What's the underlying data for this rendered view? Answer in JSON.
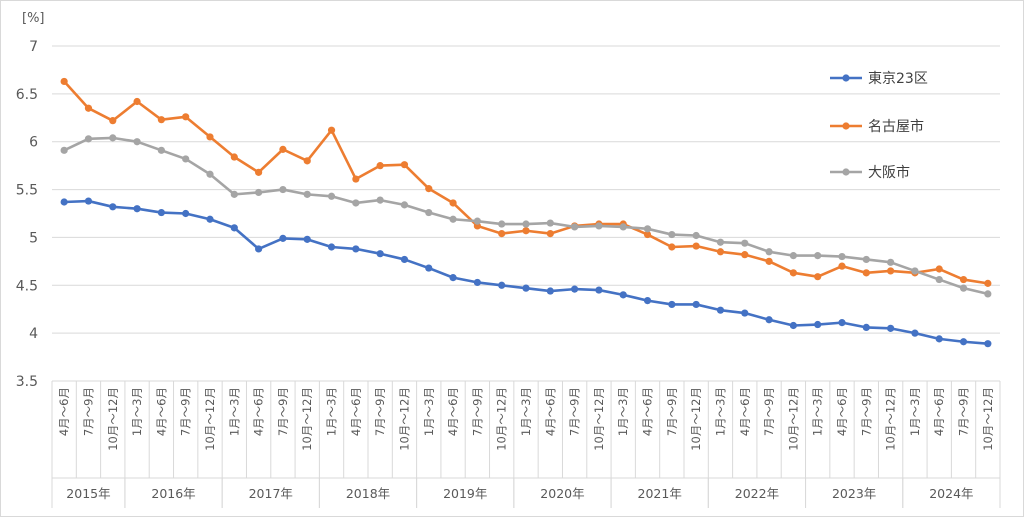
{
  "chart_data": {
    "type": "line",
    "title": "",
    "ylabel": "[%]",
    "ylim": [
      3.5,
      7
    ],
    "yticks": [
      3.5,
      4,
      4.5,
      5,
      5.5,
      6,
      6.5,
      7
    ],
    "grid": true,
    "legend_position": "right",
    "categories": [
      "4月～6月",
      "7月～9月",
      "10月～12月",
      "1月～3月",
      "4月～6月",
      "7月～9月",
      "10月～12月",
      "1月～3月",
      "4月～6月",
      "7月～9月",
      "10月～12月",
      "1月～3月",
      "4月～6月",
      "7月～9月",
      "10月～12月",
      "1月～3月",
      "4月～6月",
      "7月～9月",
      "10月～12月",
      "1月～3月",
      "4月～6月",
      "7月～9月",
      "10月～12月",
      "1月～3月",
      "4月～6月",
      "7月～9月",
      "10月～12月",
      "1月～3月",
      "4月～6月",
      "7月～9月",
      "10月～12月",
      "1月～3月",
      "4月～6月",
      "7月～9月",
      "10月～12月",
      "1月～3月",
      "4月～6月",
      "7月～9月",
      "10月～12月"
    ],
    "years": [
      {
        "label": "2015年",
        "start": 0,
        "count": 3
      },
      {
        "label": "2016年",
        "start": 3,
        "count": 4
      },
      {
        "label": "2017年",
        "start": 7,
        "count": 4
      },
      {
        "label": "2018年",
        "start": 11,
        "count": 4
      },
      {
        "label": "2019年",
        "start": 15,
        "count": 4
      },
      {
        "label": "2020年",
        "start": 19,
        "count": 4
      },
      {
        "label": "2021年",
        "start": 23,
        "count": 4
      },
      {
        "label": "2022年",
        "start": 27,
        "count": 4
      },
      {
        "label": "2023年",
        "start": 31,
        "count": 4
      },
      {
        "label": "2024年",
        "start": 35,
        "count": 4
      }
    ],
    "series": [
      {
        "name": "東京23区",
        "color": "#4472c4",
        "values": [
          5.37,
          5.38,
          5.32,
          5.3,
          5.26,
          5.25,
          5.19,
          5.1,
          4.88,
          4.99,
          4.98,
          4.9,
          4.88,
          4.83,
          4.77,
          4.68,
          4.58,
          4.53,
          4.5,
          4.47,
          4.44,
          4.46,
          4.45,
          4.4,
          4.34,
          4.3,
          4.3,
          4.24,
          4.21,
          4.14,
          4.08,
          4.09,
          4.11,
          4.06,
          4.05,
          4.0,
          3.94,
          3.91,
          3.89
        ]
      },
      {
        "name": "名古屋市",
        "color": "#ed7d31",
        "values": [
          6.63,
          6.35,
          6.22,
          6.42,
          6.23,
          6.26,
          6.05,
          5.84,
          5.68,
          5.92,
          5.8,
          6.12,
          5.61,
          5.75,
          5.76,
          5.51,
          5.36,
          5.12,
          5.04,
          5.07,
          5.04,
          5.12,
          5.14,
          5.14,
          5.03,
          4.9,
          4.91,
          4.85,
          4.82,
          4.75,
          4.63,
          4.59,
          4.7,
          4.63,
          4.65,
          4.63,
          4.67,
          4.56,
          4.52
        ]
      },
      {
        "name": "大阪市",
        "color": "#a5a5a5",
        "values": [
          5.91,
          6.03,
          6.04,
          6.0,
          5.91,
          5.82,
          5.66,
          5.45,
          5.47,
          5.5,
          5.45,
          5.43,
          5.36,
          5.39,
          5.34,
          5.26,
          5.19,
          5.17,
          5.14,
          5.14,
          5.15,
          5.11,
          5.12,
          5.11,
          5.09,
          5.03,
          5.02,
          4.95,
          4.94,
          4.85,
          4.81,
          4.81,
          4.8,
          4.77,
          4.74,
          4.65,
          4.56,
          4.47,
          4.41
        ]
      }
    ]
  }
}
